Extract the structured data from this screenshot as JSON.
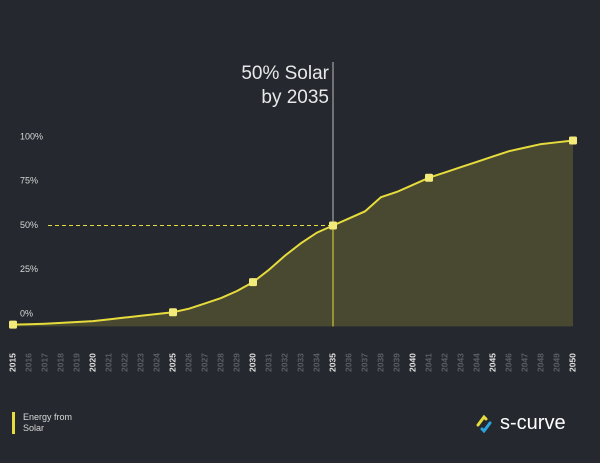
{
  "chart_data": {
    "type": "area",
    "x": [
      2015,
      2016,
      2017,
      2018,
      2019,
      2020,
      2021,
      2022,
      2023,
      2024,
      2025,
      2026,
      2027,
      2028,
      2029,
      2030,
      2031,
      2032,
      2033,
      2034,
      2035,
      2036,
      2037,
      2038,
      2039,
      2040,
      2041,
      2042,
      2043,
      2044,
      2045,
      2046,
      2047,
      2048,
      2049,
      2050
    ],
    "series": [
      {
        "name": "Energy from Solar",
        "color": "#e6dc3c",
        "values": [
          -6,
          -5.8,
          -5.5,
          -5,
          -4.5,
          -4,
          -3,
          -2,
          -1,
          0,
          1,
          3,
          6,
          9,
          13,
          18,
          25,
          33,
          40,
          46,
          50,
          54,
          58,
          66,
          69,
          73,
          77,
          80,
          83,
          86,
          89,
          92,
          94,
          96,
          97,
          98
        ]
      }
    ],
    "marker_x": [
      2015,
      2025,
      2030,
      2035,
      2041,
      2050
    ],
    "xlim": [
      2015,
      2050
    ],
    "xticks": [
      2015,
      2016,
      2017,
      2018,
      2019,
      2020,
      2021,
      2022,
      2023,
      2024,
      2025,
      2026,
      2027,
      2028,
      2029,
      2030,
      2031,
      2032,
      2033,
      2034,
      2035,
      2036,
      2037,
      2038,
      2039,
      2040,
      2041,
      2042,
      2043,
      2044,
      2045,
      2046,
      2047,
      2048,
      2049,
      2050
    ],
    "ylim": [
      -7,
      100
    ],
    "yticks": [
      {
        "value": 0,
        "label": "0%"
      },
      {
        "value": 25,
        "label": "25%"
      },
      {
        "value": 50,
        "label": "50%"
      },
      {
        "value": 75,
        "label": "75%"
      },
      {
        "value": 100,
        "label": "100%"
      }
    ],
    "annotation": {
      "text": [
        "50% Solar",
        "by 2035"
      ],
      "x": 2035,
      "y": 50
    },
    "logo": "s-curve"
  }
}
